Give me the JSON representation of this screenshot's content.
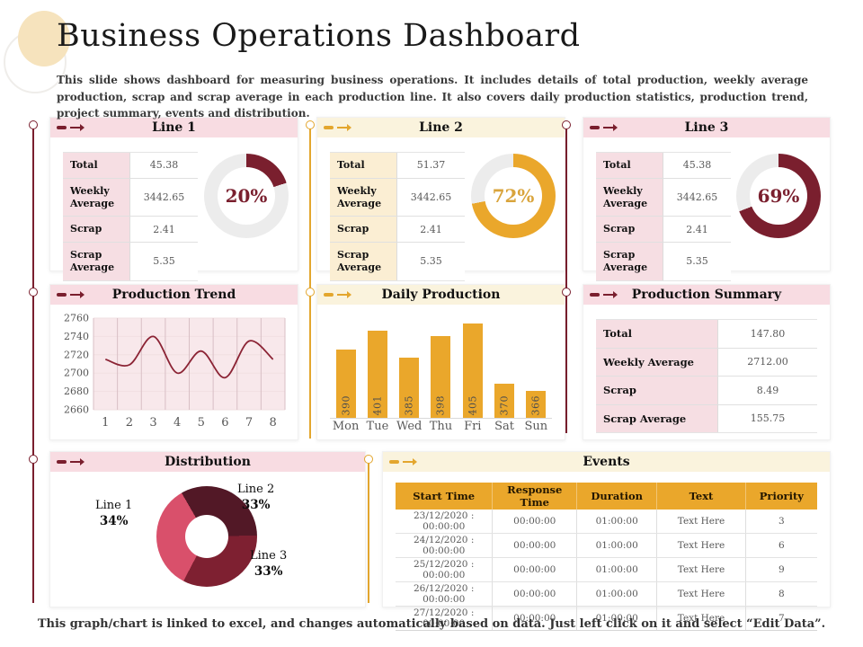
{
  "slide": {
    "title": "Business Operations Dashboard",
    "description": "This slide shows dashboard for measuring business operations. It includes details of total production, weekly average production, scrap and scrap average in each production line. It also covers daily production statistics, production trend, project summary, events and distribution.",
    "footer": "This graph/chart is linked to excel, and changes automatically based on data. Just left click on it and select “Edit Data”."
  },
  "palette": {
    "maroon": "#7a1f2e",
    "gold": "#eaa72b",
    "rose": "#d9506b",
    "dark_maroon": "#521826",
    "mid_maroon": "#7e2031",
    "gauge_track": "#ececec",
    "pink_header": "#f8dce2",
    "cream_header": "#faf3dd"
  },
  "line_panels": [
    {
      "title": "Line 1",
      "rows": [
        {
          "label": "Total",
          "value": "45.38"
        },
        {
          "label": "Weekly Average",
          "value": "3442.65"
        },
        {
          "label": "Scrap",
          "value": "2.41"
        },
        {
          "label": "Scrap Average",
          "value": "5.35"
        }
      ]
    },
    {
      "title": "Line 2",
      "rows": [
        {
          "label": "Total",
          "value": "51.37"
        },
        {
          "label": "Weekly Average",
          "value": "3442.65"
        },
        {
          "label": "Scrap",
          "value": "2.41"
        },
        {
          "label": "Scrap Average",
          "value": "5.35"
        }
      ]
    },
    {
      "title": "Line 3",
      "rows": [
        {
          "label": "Total",
          "value": "45.38"
        },
        {
          "label": "Weekly Average",
          "value": "3442.65"
        },
        {
          "label": "Scrap",
          "value": "2.41"
        },
        {
          "label": "Scrap Average",
          "value": "5.35"
        }
      ]
    }
  ],
  "production_trend": {
    "title": "Production Trend"
  },
  "daily_production": {
    "title": "Daily Production"
  },
  "production_summary": {
    "title": "Production Summary",
    "rows": [
      {
        "label": "Total",
        "value": "147.80"
      },
      {
        "label": "Weekly Average",
        "value": "2712.00"
      },
      {
        "label": "Scrap",
        "value": "8.49"
      },
      {
        "label": "Scrap Average",
        "value": "155.75"
      }
    ]
  },
  "distribution": {
    "title": "Distribution",
    "callouts": [
      {
        "name": "Line 1",
        "pct": "34%"
      },
      {
        "name": "Line 2",
        "pct": "33%"
      },
      {
        "name": "Line 3",
        "pct": "33%"
      }
    ]
  },
  "events": {
    "title": "Events",
    "columns": [
      "Start Time",
      "Response Time",
      "Duration",
      "Text",
      "Priority"
    ],
    "rows": [
      [
        "23/12/2020  :  00:00:00",
        "00:00:00",
        "01:00:00",
        "Text Here",
        "3"
      ],
      [
        "24/12/2020  :  00:00:00",
        "00:00:00",
        "01:00:00",
        "Text Here",
        "6"
      ],
      [
        "25/12/2020  :  00:00:00",
        "00:00:00",
        "01:00:00",
        "Text Here",
        "9"
      ],
      [
        "26/12/2020  :  00:00:00",
        "00:00:00",
        "01:00:00",
        "Text Here",
        "8"
      ],
      [
        "27/12/2020  :  00:00:00",
        "00:00:00",
        "01:00:00",
        "Text Here",
        "7"
      ]
    ]
  },
  "chart_data": [
    {
      "type": "pie",
      "subtype": "donut-gauge",
      "title": "Line 1 gauge",
      "label": "20%",
      "values": [
        20,
        80
      ],
      "colors": [
        "#7a1f2e",
        "#ececec"
      ],
      "label_color": "#7a1f2e"
    },
    {
      "type": "pie",
      "subtype": "donut-gauge",
      "title": "Line 2 gauge",
      "label": "72%",
      "values": [
        72,
        28
      ],
      "colors": [
        "#eaa72b",
        "#ececec"
      ],
      "label_color": "#d9a43c"
    },
    {
      "type": "pie",
      "subtype": "donut-gauge",
      "title": "Line 3 gauge",
      "label": "69%",
      "values": [
        69,
        31
      ],
      "colors": [
        "#7a1f2e",
        "#ececec"
      ],
      "label_color": "#7a1f2e"
    },
    {
      "type": "line",
      "title": "Production Trend",
      "x": [
        1,
        2,
        3,
        4,
        5,
        6,
        7,
        8
      ],
      "values": [
        2715,
        2709,
        2740,
        2700,
        2724,
        2695,
        2735,
        2715
      ],
      "ylim": [
        2660,
        2760
      ],
      "yticks": [
        2660,
        2680,
        2700,
        2720,
        2740,
        2760
      ],
      "grid": true,
      "line_color": "#8b2334",
      "plot_bg": "#f8e8eb"
    },
    {
      "type": "bar",
      "title": "Daily Production",
      "categories": [
        "Mon",
        "Tue",
        "Wed",
        "Thu",
        "Fri",
        "Sat",
        "Sun"
      ],
      "values": [
        390,
        401,
        385,
        398,
        405,
        370,
        366
      ],
      "ylim": [
        350,
        410
      ],
      "bar_color": "#eaa72b",
      "data_labels": true
    },
    {
      "type": "pie",
      "subtype": "donut",
      "title": "Distribution",
      "labels": [
        "Line 1",
        "Line 2",
        "Line 3"
      ],
      "values": [
        34,
        33,
        33
      ],
      "start_deg": -30,
      "slices": [
        {
          "label": "Line 2",
          "value": 33,
          "color": "#521826"
        },
        {
          "label": "Line 3",
          "value": 33,
          "color": "#7e2031"
        },
        {
          "label": "Line 1",
          "value": 34,
          "color": "#d9506b"
        }
      ]
    }
  ]
}
